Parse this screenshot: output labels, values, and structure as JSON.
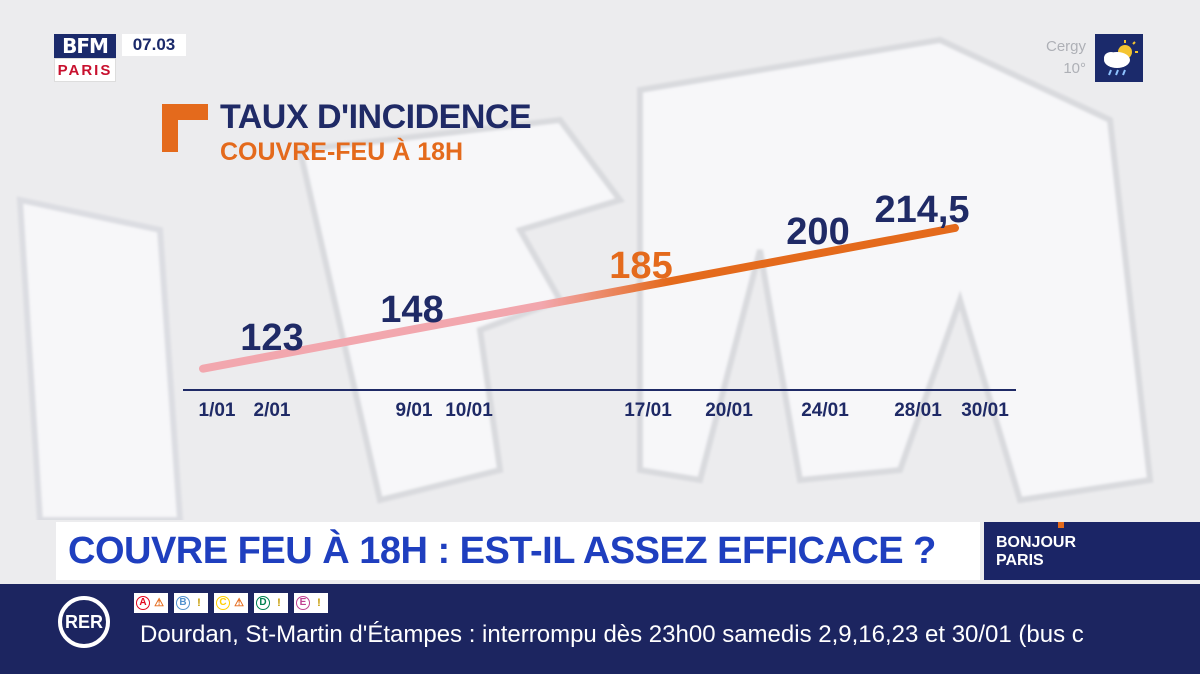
{
  "channel": {
    "logo_top": "BFM",
    "logo_bottom": "PARIS",
    "time": "07.03"
  },
  "weather": {
    "city": "Cergy",
    "temp": "10°",
    "icon": "cloud-sun-rain-icon"
  },
  "chart_data": {
    "type": "line",
    "title": "TAUX D'INCIDENCE",
    "subtitle": "COUVRE-FEU À 18H",
    "categories": [
      "1/01",
      "2/01",
      "9/01",
      "10/01",
      "17/01",
      "20/01",
      "24/01",
      "28/01",
      "30/01"
    ],
    "series": [
      {
        "x": [
          "1/01",
          "30/01"
        ],
        "values": [
          120,
          217
        ]
      }
    ],
    "annotations": [
      {
        "x": "2/01",
        "value": 123,
        "label": "123",
        "color": "#1f2a66"
      },
      {
        "x": "9/01",
        "value": 148,
        "label": "148",
        "color": "#1f2a66"
      },
      {
        "x": "17/01",
        "value": 185,
        "label": "185",
        "color": "#e46a1c"
      },
      {
        "x": "24/01",
        "value": 200,
        "label": "200",
        "color": "#1f2a66"
      },
      {
        "x": "28/01",
        "value": 214.5,
        "label": "214,5",
        "color": "#1f2a66"
      }
    ],
    "line_colors": {
      "start": "#f2a7ae",
      "end": "#e46a1c"
    },
    "grid": false,
    "xlabel": "",
    "ylabel": ""
  },
  "headline": "COUVRE FEU À 18H : EST-IL ASSEZ EFFICACE ?",
  "show": {
    "name": "BONJOUR PARIS"
  },
  "ticker": {
    "network": "RER",
    "lines": [
      {
        "letter": "A",
        "color": "#e3051c",
        "alert": "⚠"
      },
      {
        "letter": "B",
        "color": "#5291ce",
        "alert": "!"
      },
      {
        "letter": "C",
        "color": "#ffce00",
        "alert": "⚠"
      },
      {
        "letter": "D",
        "color": "#00814f",
        "alert": "!"
      },
      {
        "letter": "E",
        "color": "#c04191",
        "alert": "!"
      }
    ],
    "message": "Dourdan, St-Martin d'Étampes : interrompu dès 23h00 samedis 2,9,16,23 et 30/01 (bus c"
  }
}
